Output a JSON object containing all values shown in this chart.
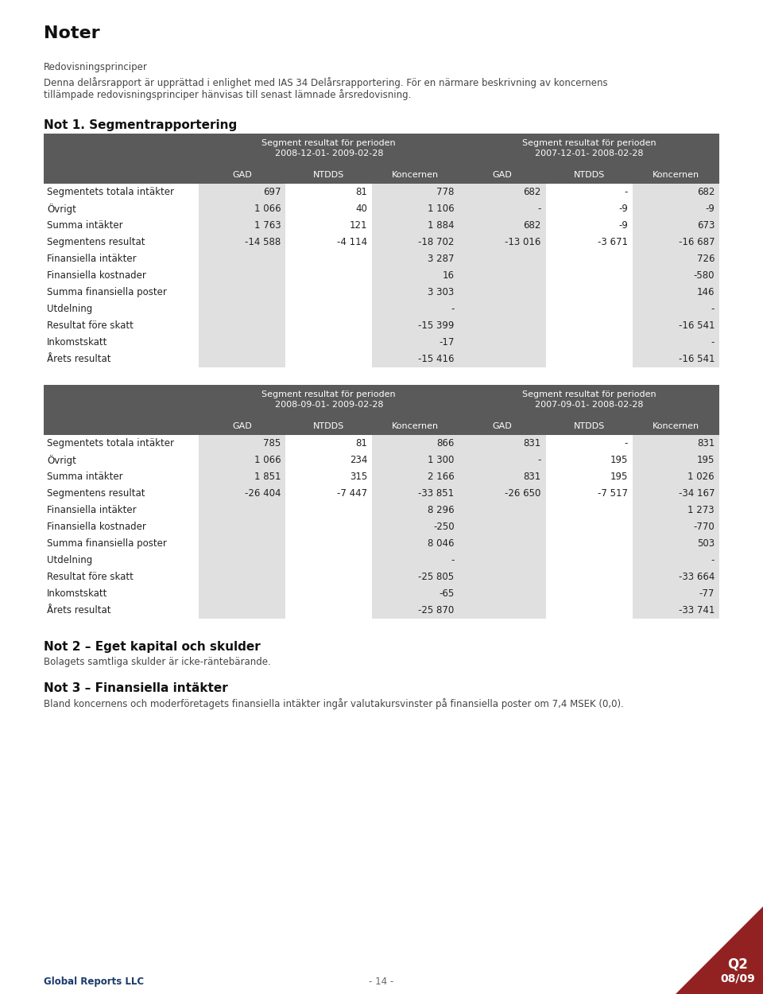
{
  "page_title": "Noter",
  "intro_lines": [
    "Redovisningsprinciper",
    "Denna delårsrapport är upprättad i enlighet med IAS 34 Delårsrapportering. För en närmare beskrivning av koncernens",
    "tillämpade redovisningsprinciper hänvisas till senast lämnade årsredovisning."
  ],
  "not1_title": "Not 1. Segmentrapportering",
  "table1_header": {
    "left_group_title": "Segment resultat för perioden",
    "left_group_date": "2008-12-01- 2009-02-28",
    "right_group_title": "Segment resultat för perioden",
    "right_group_date": "2007-12-01- 2008-02-28",
    "cols": [
      "GAD",
      "NTDDS",
      "Koncernen",
      "GAD",
      "NTDDS",
      "Koncernen"
    ]
  },
  "table1_rows": [
    {
      "label": "Segmentets totala intäkter",
      "vals": [
        "697",
        "81",
        "778",
        "682",
        "-",
        "682"
      ]
    },
    {
      "label": "Övrigt",
      "vals": [
        "1 066",
        "40",
        "1 106",
        "-",
        "-9",
        "-9"
      ]
    },
    {
      "label": "Summa intäkter",
      "vals": [
        "1 763",
        "121",
        "1 884",
        "682",
        "-9",
        "673"
      ]
    },
    {
      "label": "Segmentens resultat",
      "vals": [
        "-14 588",
        "-4 114",
        "-18 702",
        "-13 016",
        "-3 671",
        "-16 687"
      ]
    },
    {
      "label": "Finansiella intäkter",
      "vals": [
        "",
        "",
        "3 287",
        "",
        "",
        "726"
      ]
    },
    {
      "label": "Finansiella kostnader",
      "vals": [
        "",
        "",
        "16",
        "",
        "",
        "-580"
      ]
    },
    {
      "label": "Summa finansiella poster",
      "vals": [
        "",
        "",
        "3 303",
        "",
        "",
        "146"
      ]
    },
    {
      "label": "Utdelning",
      "vals": [
        "",
        "",
        "-",
        "",
        "",
        "-"
      ]
    },
    {
      "label": "Resultat före skatt",
      "vals": [
        "",
        "",
        "-15 399",
        "",
        "",
        "-16 541"
      ]
    },
    {
      "label": "Inkomstskatt",
      "vals": [
        "",
        "",
        "-17",
        "",
        "",
        "-"
      ]
    },
    {
      "label": "Årets resultat",
      "vals": [
        "",
        "",
        "-15 416",
        "",
        "",
        "-16 541"
      ]
    }
  ],
  "table2_header": {
    "left_group_title": "Segment resultat för perioden",
    "left_group_date": "2008-09-01- 2009-02-28",
    "right_group_title": "Segment resultat för perioden",
    "right_group_date": "2007-09-01- 2008-02-28",
    "cols": [
      "GAD",
      "NTDDS",
      "Koncernen",
      "GAD",
      "NTDDS",
      "Koncernen"
    ]
  },
  "table2_rows": [
    {
      "label": "Segmentets totala intäkter",
      "vals": [
        "785",
        "81",
        "866",
        "831",
        "-",
        "831"
      ]
    },
    {
      "label": "Övrigt",
      "vals": [
        "1 066",
        "234",
        "1 300",
        "-",
        "195",
        "195"
      ]
    },
    {
      "label": "Summa intäkter",
      "vals": [
        "1 851",
        "315",
        "2 166",
        "831",
        "195",
        "1 026"
      ]
    },
    {
      "label": "Segmentens resultat",
      "vals": [
        "-26 404",
        "-7 447",
        "-33 851",
        "-26 650",
        "-7 517",
        "-34 167"
      ]
    },
    {
      "label": "Finansiella intäkter",
      "vals": [
        "",
        "",
        "8 296",
        "",
        "",
        "1 273"
      ]
    },
    {
      "label": "Finansiella kostnader",
      "vals": [
        "",
        "",
        "-250",
        "",
        "",
        "-770"
      ]
    },
    {
      "label": "Summa finansiella poster",
      "vals": [
        "",
        "",
        "8 046",
        "",
        "",
        "503"
      ]
    },
    {
      "label": "Utdelning",
      "vals": [
        "",
        "",
        "-",
        "",
        "",
        "-"
      ]
    },
    {
      "label": "Resultat före skatt",
      "vals": [
        "",
        "",
        "-25 805",
        "",
        "",
        "-33 664"
      ]
    },
    {
      "label": "Inkomstskatt",
      "vals": [
        "",
        "",
        "-65",
        "",
        "",
        "-77"
      ]
    },
    {
      "label": "Årets resultat",
      "vals": [
        "",
        "",
        "-25 870",
        "",
        "",
        "-33 741"
      ]
    }
  ],
  "not2_title": "Not 2 – Eget kapital och skulder",
  "not2_text": "Bolagets samtliga skulder är icke-räntebärande.",
  "not3_title": "Not 3 – Finansiella intäkter",
  "not3_text": "Bland koncernens och moderföretagets finansiella intäkter ingår valutakursvinster på finansiella poster om 7,4 MSEK (0,0).",
  "footer_text": "- 14 -",
  "global_reports": "Global Reports LLC",
  "corner_label1": "Q2",
  "corner_label2": "08/09",
  "header_bg_color": "#5a5a5a",
  "shade_color": "#e0e0e0",
  "global_reports_color": "#1a3a6b",
  "corner_bg_color": "#922222"
}
